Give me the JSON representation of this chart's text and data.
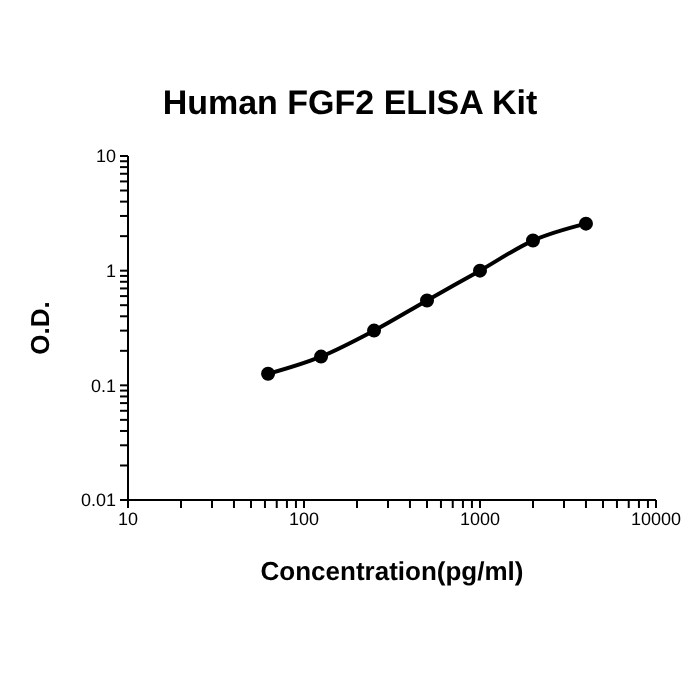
{
  "chart_data": {
    "type": "line",
    "title": "Human FGF2 ELISA Kit",
    "xlabel": "Concentration(pg/ml)",
    "ylabel": "O.D.",
    "x": [
      62.5,
      125,
      250,
      500,
      1000,
      2000,
      4000
    ],
    "series": [
      {
        "color": "#000000",
        "values": [
          0.126,
          0.178,
          0.3,
          0.55,
          1.0,
          1.83,
          2.57
        ]
      }
    ],
    "log": "xy",
    "grid": false,
    "marker": "circle",
    "line_style": "solid",
    "xlim": [
      10,
      10000
    ],
    "ylim": [
      0.01,
      10
    ],
    "xticks": [
      10,
      {
        "value": 20,
        "label": null
      },
      {
        "value": 30,
        "label": null
      },
      {
        "value": 40,
        "label": null
      },
      {
        "value": 50,
        "label": null
      },
      {
        "value": 60,
        "label": null
      },
      {
        "value": 70,
        "label": null
      },
      {
        "value": 80,
        "label": null
      },
      {
        "value": 90,
        "label": null
      },
      100,
      {
        "value": 200,
        "label": null
      },
      {
        "value": 300,
        "label": null
      },
      {
        "value": 400,
        "label": null
      },
      {
        "value": 500,
        "label": null
      },
      {
        "value": 600,
        "label": null
      },
      {
        "value": 700,
        "label": null
      },
      {
        "value": 800,
        "label": null
      },
      {
        "value": 900,
        "label": null
      },
      1000,
      {
        "value": 2000,
        "label": null
      },
      {
        "value": 3000,
        "label": null
      },
      {
        "value": 4000,
        "label": null
      },
      {
        "value": 5000,
        "label": null
      },
      {
        "value": 6000,
        "label": null
      },
      {
        "value": 7000,
        "label": null
      },
      {
        "value": 8000,
        "label": null
      },
      {
        "value": 9000,
        "label": null
      },
      10000
    ],
    "yticks": [
      0.01,
      {
        "value": 0.02,
        "label": null
      },
      {
        "value": 0.03,
        "label": null
      },
      {
        "value": 0.04,
        "label": null
      },
      {
        "value": 0.05,
        "label": null
      },
      {
        "value": 0.06,
        "label": null
      },
      {
        "value": 0.07,
        "label": null
      },
      {
        "value": 0.08,
        "label": null
      },
      {
        "value": 0.09,
        "label": null
      },
      0.1,
      {
        "value": 0.2,
        "label": null
      },
      {
        "value": 0.3,
        "label": null
      },
      {
        "value": 0.4,
        "label": null
      },
      {
        "value": 0.5,
        "label": null
      },
      {
        "value": 0.6,
        "label": null
      },
      {
        "value": 0.7,
        "label": null
      },
      {
        "value": 0.8,
        "label": null
      },
      {
        "value": 0.9,
        "label": null
      },
      1,
      {
        "value": 2,
        "label": null
      },
      {
        "value": 3,
        "label": null
      },
      {
        "value": 4,
        "label": null
      },
      {
        "value": 5,
        "label": null
      },
      {
        "value": 6,
        "label": null
      },
      {
        "value": 7,
        "label": null
      },
      {
        "value": 8,
        "label": null
      },
      {
        "value": 9,
        "label": null
      },
      10
    ]
  }
}
